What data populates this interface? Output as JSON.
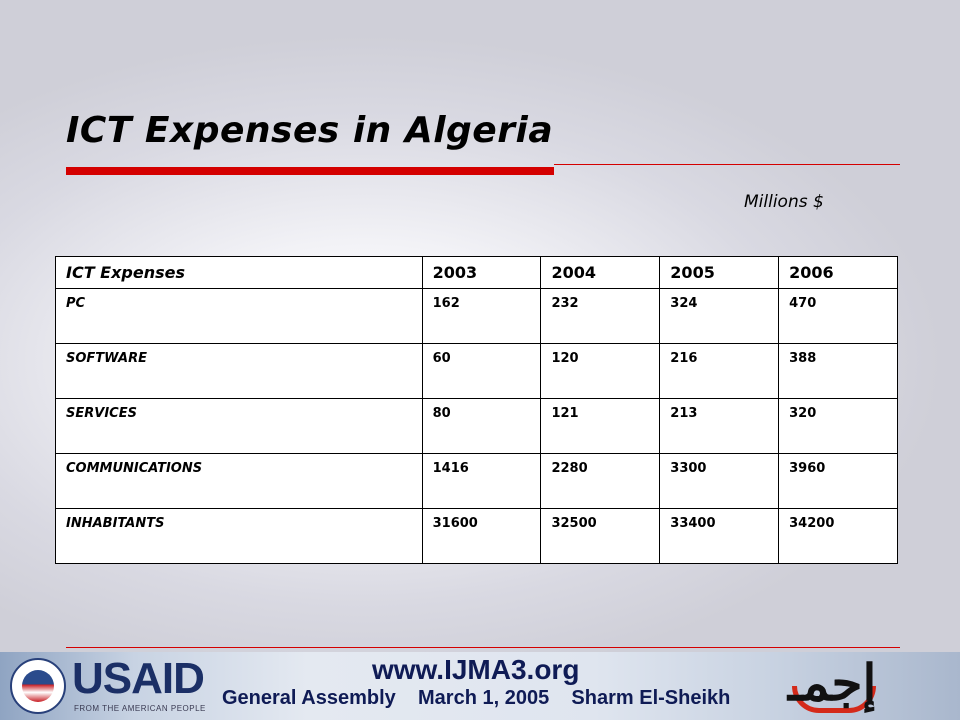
{
  "slide": {
    "title": "ICT Expenses in Algeria",
    "units": "Millions $"
  },
  "table": {
    "headers": [
      "ICT Expenses",
      "2003",
      "2004",
      "2005",
      "2006"
    ],
    "rows": [
      {
        "label": "PC",
        "values": [
          "162",
          "232",
          "324",
          "470"
        ]
      },
      {
        "label": "SOFTWARE",
        "values": [
          "60",
          "120",
          "216",
          "388"
        ]
      },
      {
        "label": "SERVICES",
        "values": [
          "80",
          "121",
          "213",
          "320"
        ]
      },
      {
        "label": "COMMUNICATIONS",
        "values": [
          "1416",
          "2280",
          "3300",
          "3960"
        ]
      },
      {
        "label": "INHABITANTS",
        "values": [
          "31600",
          "32500",
          "33400",
          "34200"
        ]
      }
    ]
  },
  "footer": {
    "usaid": "USAID",
    "usaid_sub": "FROM THE AMERICAN PEOPLE",
    "url": "www.IJMA3.org",
    "event": "General Assembly    March 1, 2005    Sharm El-Sheikh",
    "logo_text": "إجمـ"
  },
  "colors": {
    "accent_red": "#d40000",
    "footer_navy": "#0f1b55"
  }
}
